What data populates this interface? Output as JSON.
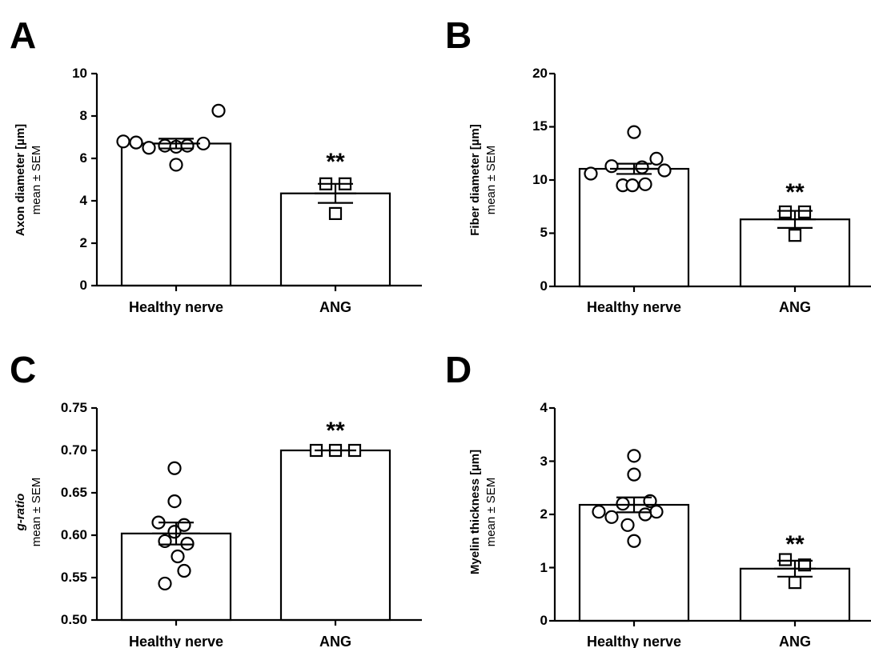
{
  "chart_data": [
    {
      "panel": "A",
      "type": "bar",
      "categories": [
        "Healthy nerve",
        "ANG"
      ],
      "ylabel": "Axon diameter [µm]",
      "ylabel_sub": "mean ± SEM",
      "ylim": [
        0,
        10
      ],
      "yticks": [
        "0",
        "2",
        "4",
        "6",
        "8",
        "10"
      ],
      "tick_values": [
        0,
        2,
        4,
        6,
        8,
        10
      ],
      "values": [
        6.7,
        4.35
      ],
      "sem": [
        0.23,
        0.45
      ],
      "significance": [
        "",
        "**"
      ],
      "points": [
        [
          6.8,
          6.75,
          6.5,
          6.6,
          6.55,
          5.7,
          6.6,
          6.7,
          8.25
        ],
        [
          4.8,
          4.8,
          3.4
        ]
      ]
    },
    {
      "panel": "B",
      "type": "bar",
      "categories": [
        "Healthy nerve",
        "ANG"
      ],
      "ylabel": "Fiber diameter [µm]",
      "ylabel_sub": "mean ± SEM",
      "ylim": [
        0,
        20
      ],
      "yticks": [
        "0",
        "5",
        "10",
        "15",
        "20"
      ],
      "tick_values": [
        0,
        5,
        10,
        15,
        20
      ],
      "values": [
        11.05,
        6.3
      ],
      "sem": [
        0.48,
        0.8
      ],
      "significance": [
        "",
        "**"
      ],
      "points": [
        [
          10.6,
          11.3,
          9.5,
          9.5,
          11.2,
          9.6,
          12.0,
          10.9,
          14.5
        ],
        [
          7.0,
          7.0,
          4.8
        ]
      ]
    },
    {
      "panel": "C",
      "type": "bar",
      "categories": [
        "Healthy nerve",
        "ANG"
      ],
      "ylabel": "g-ratio",
      "ylabel_sub": "mean ± SEM",
      "ylim": [
        0.5,
        0.75
      ],
      "yticks": [
        "0.50",
        "0.55",
        "0.60",
        "0.65",
        "0.70",
        "0.75"
      ],
      "tick_values": [
        0.5,
        0.55,
        0.6,
        0.65,
        0.7,
        0.75
      ],
      "values": [
        0.602,
        0.7
      ],
      "sem": [
        0.013,
        0.0
      ],
      "significance": [
        "",
        "**"
      ],
      "points": [
        [
          0.615,
          0.593,
          0.543,
          0.64,
          0.604,
          0.679,
          0.575,
          0.612,
          0.558,
          0.59
        ],
        [
          0.7,
          0.7,
          0.7
        ]
      ]
    },
    {
      "panel": "D",
      "type": "bar",
      "categories": [
        "Healthy nerve",
        "ANG"
      ],
      "ylabel": "Myelin thickness [µm]",
      "ylabel_sub": "mean ± SEM",
      "ylim": [
        0,
        4
      ],
      "yticks": [
        "0",
        "1",
        "2",
        "3",
        "4"
      ],
      "tick_values": [
        0,
        1,
        2,
        3,
        4
      ],
      "values": [
        2.18,
        0.98
      ],
      "sem": [
        0.14,
        0.15
      ],
      "significance": [
        "",
        "**"
      ],
      "points": [
        [
          2.05,
          1.95,
          2.2,
          1.8,
          1.5,
          2.75,
          3.1,
          2.0,
          2.25,
          2.05
        ],
        [
          1.15,
          1.05,
          0.72
        ]
      ]
    }
  ]
}
